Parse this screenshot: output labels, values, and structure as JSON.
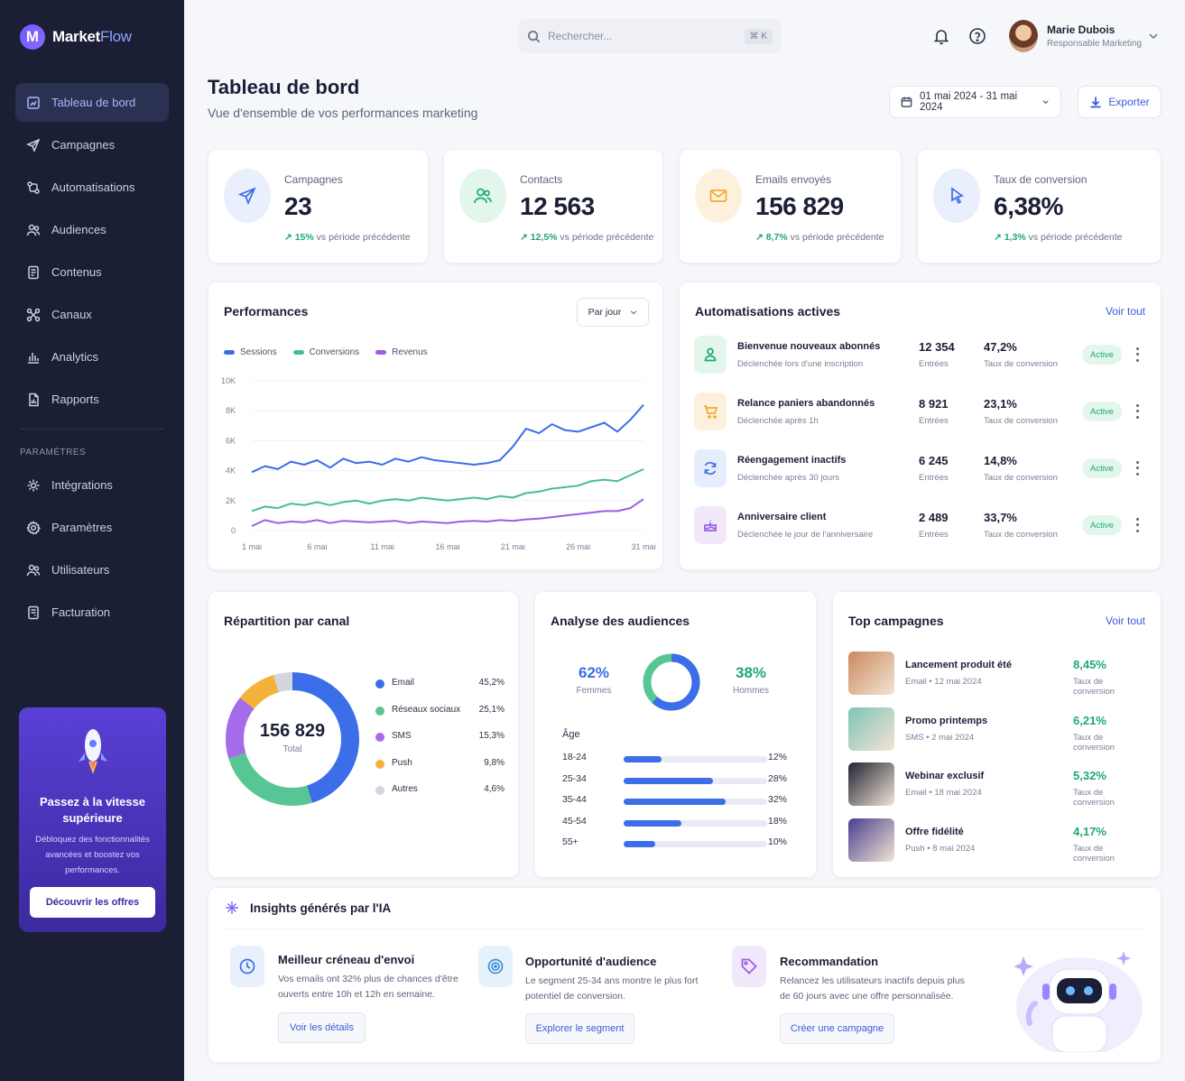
{
  "brand": {
    "name_part1": "Market",
    "name_part2": "Flow",
    "logo_letter": "M"
  },
  "sidebar": {
    "items": [
      {
        "label": "Tableau de bord",
        "icon": "dashboard-icon"
      },
      {
        "label": "Campagnes",
        "icon": "send-icon"
      },
      {
        "label": "Automatisations",
        "icon": "automation-icon"
      },
      {
        "label": "Audiences",
        "icon": "users-icon"
      },
      {
        "label": "Contenus",
        "icon": "document-icon"
      },
      {
        "label": "Canaux",
        "icon": "channels-icon"
      },
      {
        "label": "Analytics",
        "icon": "bar-chart-icon"
      },
      {
        "label": "Rapports",
        "icon": "report-icon"
      }
    ],
    "section_label": "PARAMÈTRES",
    "settings_items": [
      {
        "label": "Intégrations",
        "icon": "integrations-icon"
      },
      {
        "label": "Paramètres",
        "icon": "gear-icon"
      },
      {
        "label": "Utilisateurs",
        "icon": "users-icon"
      },
      {
        "label": "Facturation",
        "icon": "billing-icon"
      }
    ]
  },
  "promo": {
    "title": "Passez à la vitesse supérieure",
    "text": "Débloquez des fonctionnalités avancées et boostez vos performances.",
    "button": "Découvrir les offres"
  },
  "header": {
    "search_placeholder": "Rechercher...",
    "search_shortcut": "⌘ K",
    "user_name": "Marie Dubois",
    "user_role": "Responsable Marketing"
  },
  "page": {
    "title": "Tableau de bord",
    "subtitle": "Vue d'ensemble de vos performances marketing",
    "date_range": "01 mai 2024 - 31 mai 2024",
    "export_label": "Exporter"
  },
  "kpis": [
    {
      "label": "Campagnes",
      "value": "23",
      "delta": "15%",
      "delta_text": "vs période précédente",
      "color": "#3b6ee8"
    },
    {
      "label": "Contacts",
      "value": "12 563",
      "delta": "12,5%",
      "delta_text": "vs période précédente",
      "color": "#1fa971"
    },
    {
      "label": "Emails envoyés",
      "value": "156 829",
      "delta": "8,7%",
      "delta_text": "vs période précédente",
      "color": "#f0a92e"
    },
    {
      "label": "Taux de conversion",
      "value": "6,38%",
      "delta": "1,3%",
      "delta_text": "vs période précédente",
      "color": "#3b6ee8"
    }
  ],
  "performances": {
    "title": "Performances",
    "select": "Par jour",
    "legend": [
      "Sessions",
      "Conversions",
      "Revenus"
    ]
  },
  "chart_data": {
    "type": "line",
    "title": "Performances",
    "x": [
      "1 mai",
      "2 mai",
      "3 mai",
      "4 mai",
      "5 mai",
      "6 mai",
      "7 mai",
      "8 mai",
      "9 mai",
      "10 mai",
      "11 mai",
      "12 mai",
      "13 mai",
      "14 mai",
      "15 mai",
      "16 mai",
      "17 mai",
      "18 mai",
      "19 mai",
      "20 mai",
      "21 mai",
      "22 mai",
      "23 mai",
      "24 mai",
      "25 mai",
      "26 mai",
      "27 mai",
      "28 mai",
      "29 mai",
      "30 mai",
      "31 mai"
    ],
    "xticks": [
      "1 mai",
      "6 mai",
      "11 mai",
      "16 mai",
      "21 mai",
      "26 mai",
      "31 mai"
    ],
    "yticks": [
      "0",
      "2K",
      "4K",
      "6K",
      "8K",
      "10K"
    ],
    "ylim": [
      0,
      10000
    ],
    "series": [
      {
        "name": "Sessions",
        "color": "#3b6ee8",
        "values": [
          3900,
          4300,
          4100,
          4600,
          4400,
          4700,
          4200,
          4800,
          4500,
          4600,
          4400,
          4800,
          4600,
          4900,
          4700,
          4600,
          4500,
          4400,
          4500,
          4700,
          5600,
          6800,
          6500,
          7100,
          6700,
          6600,
          6900,
          7200,
          6600,
          7400,
          8400
        ]
      },
      {
        "name": "Conversions",
        "color": "#45c08a",
        "values": [
          1300,
          1600,
          1500,
          1800,
          1700,
          1900,
          1700,
          1900,
          2000,
          1800,
          2000,
          2100,
          2000,
          2200,
          2100,
          2000,
          2100,
          2200,
          2100,
          2300,
          2200,
          2500,
          2600,
          2800,
          2900,
          3000,
          3300,
          3400,
          3300,
          3700,
          4100
        ]
      },
      {
        "name": "Revenus",
        "color": "#9b5de5",
        "values": [
          300,
          700,
          500,
          600,
          550,
          700,
          500,
          650,
          600,
          550,
          600,
          650,
          500,
          600,
          550,
          500,
          600,
          650,
          600,
          700,
          650,
          750,
          800,
          900,
          1000,
          1100,
          1200,
          1300,
          1300,
          1500,
          2100
        ]
      }
    ]
  },
  "automations": {
    "title": "Automatisations actives",
    "see_all": "Voir tout",
    "items": [
      {
        "name": "Bienvenue nouveaux abonnés",
        "desc": "Déclenchée lors d'une inscription",
        "entries": "12 354",
        "entries_label": "Entrées",
        "rate": "47,2%",
        "rate_label": "Taux de conversion",
        "status": "Active",
        "icon": "user-icon",
        "color": "#1fa971",
        "bg": "#e3f6ec"
      },
      {
        "name": "Relance paniers abandonnés",
        "desc": "Déclenchée après 1h",
        "entries": "8 921",
        "entries_label": "Entrées",
        "rate": "23,1%",
        "rate_label": "Taux de conversion",
        "status": "Active",
        "icon": "cart-icon",
        "color": "#f0a92e",
        "bg": "#fdf1de"
      },
      {
        "name": "Réengagement inactifs",
        "desc": "Déclenchée après 30 jours",
        "entries": "6 245",
        "entries_label": "Entrées",
        "rate": "14,8%",
        "rate_label": "Taux de conversion",
        "status": "Active",
        "icon": "refresh-icon",
        "color": "#3b6ee8",
        "bg": "#e6edfc"
      },
      {
        "name": "Anniversaire client",
        "desc": "Déclenchée le jour de l'anniversaire",
        "entries": "2 489",
        "entries_label": "Entrées",
        "rate": "33,7%",
        "rate_label": "Taux de conversion",
        "status": "Active",
        "icon": "cake-icon",
        "color": "#9b5de5",
        "bg": "#f1e8fc"
      }
    ]
  },
  "channels": {
    "title": "Répartition par canal",
    "total": "156 829",
    "total_label": "Total",
    "items": [
      {
        "name": "Email",
        "pct": "45,2%",
        "value": 45.2,
        "color": "#3b6ee8"
      },
      {
        "name": "Réseaux sociaux",
        "pct": "25,1%",
        "value": 25.1,
        "color": "#58c694"
      },
      {
        "name": "SMS",
        "pct": "15,3%",
        "value": 15.3,
        "color": "#a66be8"
      },
      {
        "name": "Push",
        "pct": "9,8%",
        "value": 9.8,
        "color": "#f3b33b"
      },
      {
        "name": "Autres",
        "pct": "4,6%",
        "value": 4.6,
        "color": "#d3d6de"
      }
    ]
  },
  "audiences": {
    "title": "Analyse des audiences",
    "women_pct": "62%",
    "women_label": "Femmes",
    "men_pct": "38%",
    "men_label": "Hommes",
    "women_value": 62,
    "age_title": "Âge",
    "ages": [
      {
        "label": "18-24",
        "pct": "12%",
        "value": 12
      },
      {
        "label": "25-34",
        "pct": "28%",
        "value": 28
      },
      {
        "label": "35-44",
        "pct": "32%",
        "value": 32
      },
      {
        "label": "45-54",
        "pct": "18%",
        "value": 18
      },
      {
        "label": "55+",
        "pct": "10%",
        "value": 10
      }
    ]
  },
  "top_campaigns": {
    "title": "Top campagnes",
    "see_all": "Voir tout",
    "items": [
      {
        "name": "Lancement produit été",
        "meta": "Email • 12 mai 2024",
        "rate": "8,45%",
        "rate_label": "Taux de conversion",
        "thumb": "#c98a5e"
      },
      {
        "name": "Promo printemps",
        "meta": "SMS • 2 mai 2024",
        "rate": "6,21%",
        "rate_label": "Taux de conversion",
        "thumb": "#7fc3b5"
      },
      {
        "name": "Webinar exclusif",
        "meta": "Email • 18 mai 2024",
        "rate": "5,32%",
        "rate_label": "Taux de conversion",
        "thumb": "#1f2433"
      },
      {
        "name": "Offre fidélité",
        "meta": "Push • 8 mai 2024",
        "rate": "4,17%",
        "rate_label": "Taux de conversion",
        "thumb": "#4a3e8f"
      }
    ]
  },
  "insights": {
    "title": "Insights générés par l'IA",
    "items": [
      {
        "title": "Meilleur créneau d'envoi",
        "text": "Vos emails ont 32% plus de chances d'être ouverts entre 10h et 12h en semaine.",
        "button": "Voir les détails",
        "icon": "clock-icon",
        "color": "#3b6ee8",
        "bg": "#e9effc"
      },
      {
        "title": "Opportunité d'audience",
        "text": "Le segment 25-34 ans montre le plus fort potentiel de conversion.",
        "button": "Explorer le segment",
        "icon": "target-icon",
        "color": "#3b8fd6",
        "bg": "#e6f2fb"
      },
      {
        "title": "Recommandation",
        "text": "Relancez les utilisateurs inactifs depuis plus de 60 jours avec une offre personnalisée.",
        "button": "Créer une campagne",
        "icon": "tag-icon",
        "color": "#9b5de5",
        "bg": "#f1e8fc"
      }
    ]
  }
}
